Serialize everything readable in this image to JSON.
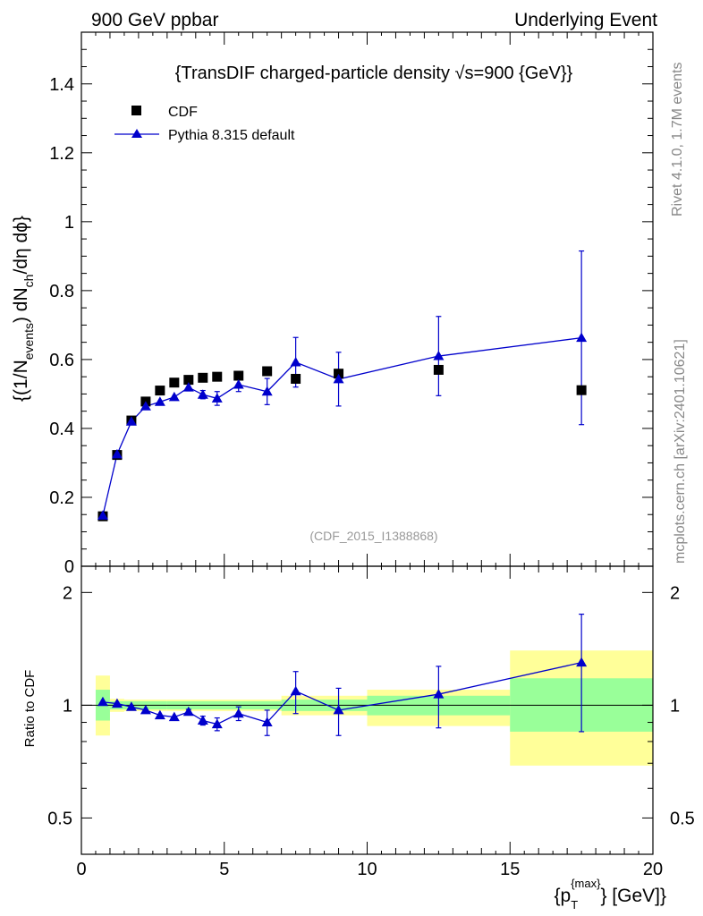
{
  "header": {
    "left": "900 GeV ppbar",
    "right": "Underlying Event"
  },
  "side": {
    "rivet": "Rivet 4.1.0,  1.7M events",
    "mcplots": "mcplots.cern.ch [arXiv:2401.10621]"
  },
  "chart_data": {
    "type": "scatter",
    "title": "{TransDIF charged-particle density √s=900 {GeV}}",
    "title_main": "{TransDIF charged-particle density ",
    "title_sqrt": "√s",
    "title_tail": "=900 {GeV}}",
    "watermark": "(CDF_2015_I1388868)",
    "ylabel": "{(1/N_events) dN_ch/dη dϕ}",
    "ylabel_parts": {
      "a": "{(1/N",
      "b": "events",
      "c": ") dN",
      "d": "ch",
      "e": "/dη  dϕ}"
    },
    "xlabel": "{p_T^{max}} [GeV]",
    "xlabel_parts": {
      "a": "{p",
      "sub": "T",
      "sup": "{max}",
      "b": "} [GeV]}"
    },
    "xlim": [
      0,
      20
    ],
    "ylim": [
      0,
      1.55
    ],
    "xticks": [
      "0",
      "5",
      "10",
      "15",
      "20"
    ],
    "xtick_values": [
      0,
      5,
      10,
      15,
      20
    ],
    "yticks": [
      "0",
      "0.2",
      "0.4",
      "0.6",
      "0.8",
      "1",
      "1.2",
      "1.4"
    ],
    "ytick_values": [
      0,
      0.2,
      0.4,
      0.6,
      0.8,
      1.0,
      1.2,
      1.4
    ],
    "legend": {
      "position": "top-left",
      "entries": [
        "CDF",
        "Pythia 8.315 default"
      ]
    },
    "series": [
      {
        "name": "CDF",
        "marker": "square",
        "color": "#000000",
        "x": [
          0.75,
          1.25,
          1.75,
          2.25,
          2.75,
          3.25,
          3.75,
          4.25,
          4.75,
          5.5,
          6.5,
          7.5,
          9.0,
          12.5,
          17.5
        ],
        "y": [
          0.145,
          0.323,
          0.423,
          0.478,
          0.51,
          0.533,
          0.541,
          0.547,
          0.55,
          0.553,
          0.566,
          0.544,
          0.559,
          0.57,
          0.511
        ]
      },
      {
        "name": "Pythia 8.315 default",
        "marker": "triangle",
        "color": "#0000cc",
        "x": [
          0.75,
          1.25,
          1.75,
          2.25,
          2.75,
          3.25,
          3.75,
          4.25,
          4.75,
          5.5,
          6.5,
          7.5,
          9.0,
          12.5,
          17.5
        ],
        "y": [
          0.147,
          0.325,
          0.42,
          0.464,
          0.477,
          0.491,
          0.519,
          0.498,
          0.487,
          0.527,
          0.507,
          0.592,
          0.543,
          0.61,
          0.663
        ],
        "err": [
          0.0,
          0.0,
          0.0,
          0.0,
          0.0,
          0.0,
          0.01,
          0.012,
          0.02,
          0.02,
          0.038,
          0.072,
          0.078,
          0.115,
          0.252
        ]
      }
    ],
    "ratio": {
      "ylabel": "Ratio to CDF",
      "ylim": [
        0.4,
        2.35
      ],
      "yticks_left": [
        "0.5",
        "1",
        "2"
      ],
      "yticks_right": [
        "0.5",
        "1",
        "2"
      ],
      "ytick_values": [
        0.5,
        1,
        2
      ],
      "x": [
        0.75,
        1.25,
        1.75,
        2.25,
        2.75,
        3.25,
        3.75,
        4.25,
        4.75,
        5.5,
        6.5,
        7.5,
        9.0,
        12.5,
        17.5
      ],
      "y": [
        1.02,
        1.01,
        0.99,
        0.97,
        0.94,
        0.93,
        0.96,
        0.91,
        0.89,
        0.95,
        0.9,
        1.09,
        0.97,
        1.07,
        1.3
      ],
      "err": [
        0.0,
        0.0,
        0.0,
        0.0,
        0.0,
        0.0,
        0.015,
        0.025,
        0.035,
        0.04,
        0.07,
        0.14,
        0.14,
        0.2,
        0.45
      ],
      "bands": [
        {
          "x0": 0.5,
          "x1": 1.0,
          "yellow": [
            0.83,
            1.2
          ],
          "green": [
            0.91,
            1.1
          ]
        },
        {
          "x0": 1.0,
          "x1": 1.5,
          "yellow": [
            0.96,
            1.04
          ],
          "green": [
            0.975,
            1.025
          ]
        },
        {
          "x0": 1.5,
          "x1": 3.0,
          "yellow": [
            0.965,
            1.035
          ],
          "green": [
            0.975,
            1.025
          ]
        },
        {
          "x0": 3.0,
          "x1": 7.0,
          "yellow": [
            0.965,
            1.035
          ],
          "green": [
            0.975,
            1.025
          ]
        },
        {
          "x0": 7.0,
          "x1": 10.0,
          "yellow": [
            0.94,
            1.06
          ],
          "green": [
            0.965,
            1.035
          ]
        },
        {
          "x0": 10.0,
          "x1": 15.0,
          "yellow": [
            0.88,
            1.1
          ],
          "green": [
            0.94,
            1.06
          ]
        },
        {
          "x0": 15.0,
          "x1": 20.0,
          "yellow": [
            0.69,
            1.4
          ],
          "green": [
            0.85,
            1.18
          ]
        }
      ]
    }
  }
}
